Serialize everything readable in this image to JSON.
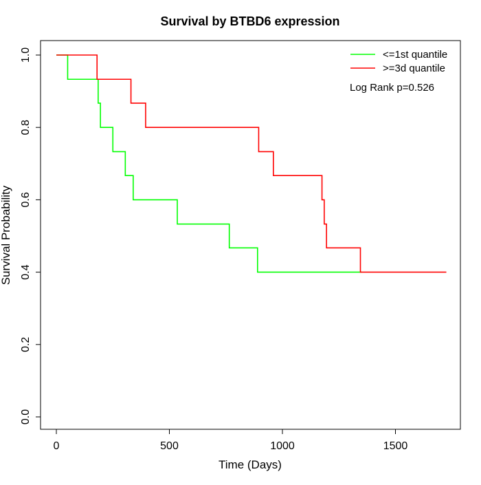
{
  "chart_data": {
    "type": "line",
    "title": "Survival by BTBD6 expression",
    "xlabel": "Time (Days)",
    "ylabel": "Survival Probability",
    "xlim": [
      0,
      1750
    ],
    "ylim": [
      0,
      1
    ],
    "x_ticks": [
      0,
      500,
      1000,
      1500
    ],
    "y_ticks": [
      0.0,
      0.2,
      0.4,
      0.6,
      0.8,
      1.0
    ],
    "x_tick_labels": [
      "0",
      "500",
      "1000",
      "1500"
    ],
    "y_tick_labels": [
      "0.0",
      "0.2",
      "0.4",
      "0.6",
      "0.8",
      "1.0"
    ],
    "grid": false,
    "legend_position": "top-right",
    "annotation": "Log Rank p=0.526",
    "series": [
      {
        "name": "<=1st quantile",
        "color": "#00ff00",
        "step": true,
        "x": [
          0,
          50,
          185,
          195,
          250,
          305,
          340,
          535,
          765,
          890,
          1350
        ],
        "y": [
          1.0,
          0.933,
          0.867,
          0.8,
          0.733,
          0.667,
          0.6,
          0.533,
          0.467,
          0.4,
          0.4
        ]
      },
      {
        "name": ">=3d quantile",
        "color": "#ff0000",
        "step": true,
        "x": [
          0,
          180,
          330,
          395,
          895,
          960,
          1175,
          1185,
          1195,
          1345,
          1725
        ],
        "y": [
          1.0,
          0.933,
          0.867,
          0.8,
          0.733,
          0.667,
          0.6,
          0.533,
          0.467,
          0.4,
          0.4
        ]
      }
    ]
  }
}
